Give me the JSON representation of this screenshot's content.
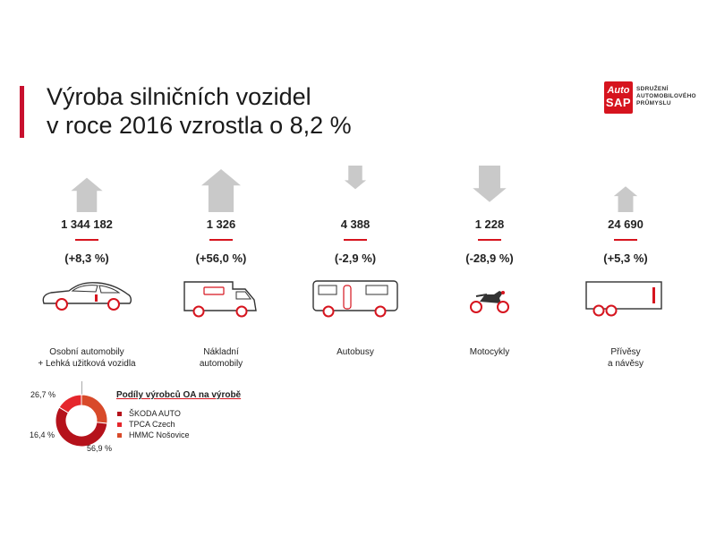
{
  "title": {
    "line1": "Výroba silničních vozidel",
    "line2": "v roce 2016 vzrostla o 8,2 %"
  },
  "logo": {
    "brand_line1": "Auto",
    "brand_line2": "SAP",
    "text_line1": "SDRUŽENÍ",
    "text_line2": "AUTOMOBILOVÉHO",
    "text_line3": "PRŮMYSLU"
  },
  "categories": [
    {
      "value": "1 344 182",
      "change": "(+8,3 %)",
      "label1": "Osobní automobily",
      "label2": "+ Lehká užitková vozidla",
      "trend": "up",
      "arrow_scale": 0.8
    },
    {
      "value": "1 326",
      "change": "(+56,0 %)",
      "label1": "Nákladní",
      "label2": "automobily",
      "trend": "up",
      "arrow_scale": 1.0
    },
    {
      "value": "4 388",
      "change": "(-2,9 %)",
      "label1": "Autobusy",
      "label2": "",
      "trend": "down",
      "arrow_scale": 0.55
    },
    {
      "value": "1 228",
      "change": "(-28,9 %)",
      "label1": "Motocykly",
      "label2": "",
      "trend": "down",
      "arrow_scale": 0.85
    },
    {
      "value": "24 690",
      "change": "(+5,3 %)",
      "label1": "Přívěsy",
      "label2": "a návěsy",
      "trend": "up",
      "arrow_scale": 0.6
    }
  ],
  "share": {
    "title": "Podíly výrobců OA na výrobě",
    "legend": [
      {
        "name": "ŠKODA AUTO",
        "color": "#b5121b"
      },
      {
        "name": "TPCA Czech",
        "color": "#e5262c"
      },
      {
        "name": "HMMC Nošovice",
        "color": "#d84a2a"
      }
    ],
    "pct_labels": {
      "top": "26,7 %",
      "left": "16,4 %",
      "bottom": "56,9 %"
    }
  },
  "chart_data": {
    "type": "pie",
    "title": "Podíly výrobců OA na výrobě",
    "categories": [
      "ŠKODA AUTO",
      "TPCA Czech",
      "HMMC Nošovice"
    ],
    "values": [
      56.9,
      16.4,
      26.7
    ],
    "colors": [
      "#b5121b",
      "#e5262c",
      "#d84a2a"
    ]
  }
}
